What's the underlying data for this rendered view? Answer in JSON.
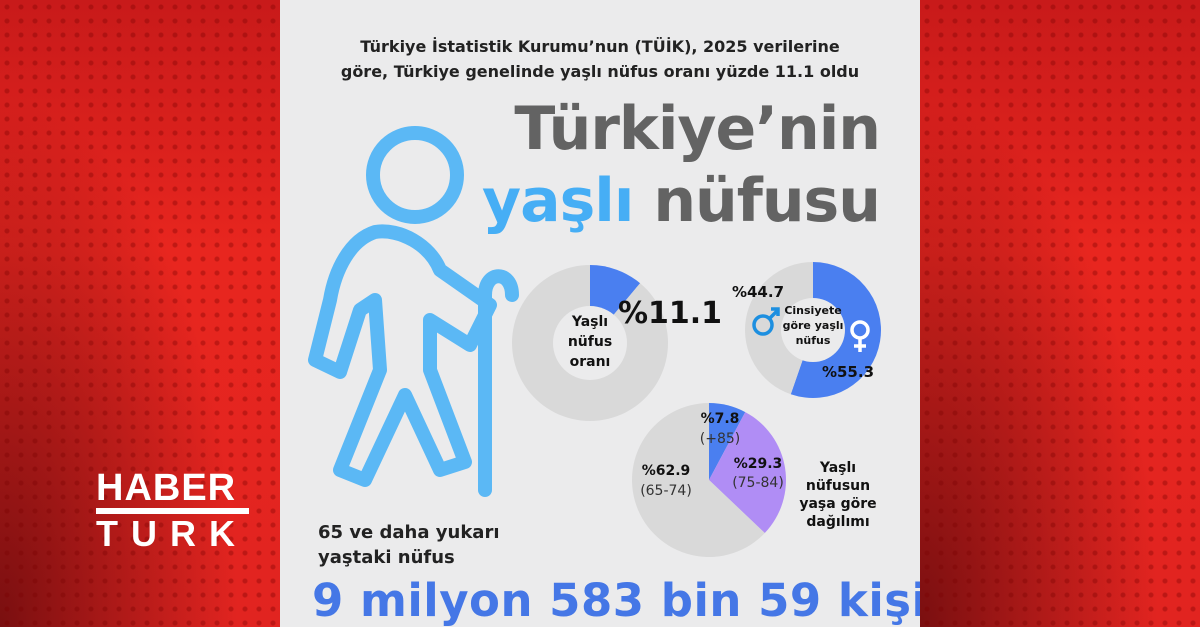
{
  "brand": {
    "logo_line1": "HABER",
    "logo_line2": "TURK",
    "accent": "#e52620"
  },
  "header": {
    "subtitle_line1": "Türkiye İstatistik Kurumu’nun (TÜİK), 2025 verilerine",
    "subtitle_line2": "göre, Türkiye genelinde yaşlı nüfus oranı yüzde 11.1 oldu",
    "title_line1": "Türkiye’nin",
    "title_word_blue": "yaşlı",
    "title_word_gray": "nüfusu"
  },
  "footer": {
    "caption_line1": "65 ve daha yukarı",
    "caption_line2": "yaştaki nüfus",
    "total": "9 milyon 583 bin 59 kişi"
  },
  "icons": {
    "figure": "elderly-person-with-cane-icon",
    "male": "male-symbol-icon",
    "female": "female-symbol-icon"
  },
  "colors": {
    "blue": "#4a7ff0",
    "purple": "#b08df5",
    "gray": "#d9d9d9",
    "figure": "#5bb8f5"
  },
  "chart_data": [
    {
      "type": "pie",
      "style": "donut",
      "center_label": [
        "Yaşlı",
        "nüfus",
        "oranı"
      ],
      "slices": [
        {
          "label": "%11.1",
          "value": 11.1,
          "color": "#4a7ff0"
        },
        {
          "label": "",
          "value": 88.9,
          "color": "#d9d9d9"
        }
      ]
    },
    {
      "type": "pie",
      "style": "donut",
      "center_label": [
        "Cinsiyete",
        "göre yaşlı",
        "nüfus"
      ],
      "slices": [
        {
          "label": "%55.3",
          "value": 55.3,
          "color": "#4a7ff0",
          "icon": "female-symbol-icon"
        },
        {
          "label": "%44.7",
          "value": 44.7,
          "color": "#d9d9d9",
          "icon": "male-symbol-icon"
        }
      ]
    },
    {
      "type": "pie",
      "title": [
        "Yaşlı",
        "nüfusun",
        "yaşa göre",
        "dağılımı"
      ],
      "slices": [
        {
          "label": "%7.8",
          "group": "(+85)",
          "value": 7.8,
          "color": "#4a7ff0"
        },
        {
          "label": "%29.3",
          "group": "(75-84)",
          "value": 29.3,
          "color": "#b08df5"
        },
        {
          "label": "%62.9",
          "group": "(65-74)",
          "value": 62.9,
          "color": "#d9d9d9"
        }
      ]
    }
  ]
}
